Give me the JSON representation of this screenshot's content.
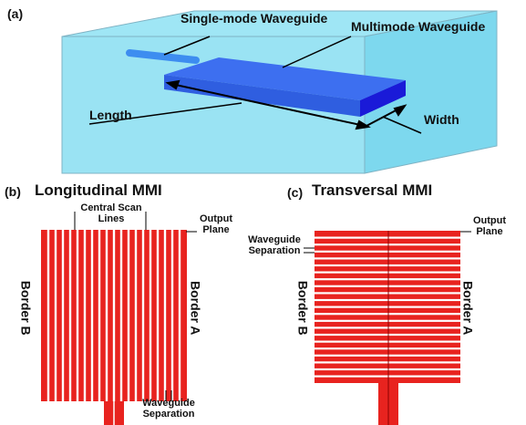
{
  "panels": [
    {
      "label": "(a)",
      "annotations": [
        "Single-mode Waveguide",
        "Multimode Waveguide",
        "Length",
        "Width"
      ]
    },
    {
      "label": "(b)",
      "title": "Longitudinal MMI",
      "annotations": [
        "Central Scan Lines",
        "Output Plane",
        "Border B",
        "Border A",
        "Waveguide Separation"
      ]
    },
    {
      "label": "(c)",
      "title": "Transversal MMI",
      "annotations": [
        "Output Plane",
        "Waveguide Separation",
        "Border B",
        "Border A"
      ]
    }
  ]
}
